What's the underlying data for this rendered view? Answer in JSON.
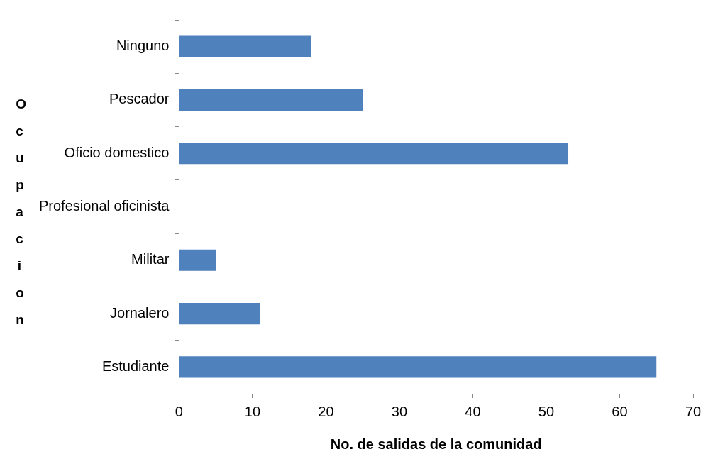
{
  "chart_data": {
    "type": "bar",
    "orientation": "horizontal",
    "xlabel": "No. de salidas de la comunidad",
    "ylabel": "Ocupacion",
    "categories": [
      "Ninguno",
      "Pescador",
      "Oficio domestico",
      "Profesional oficinista",
      "Militar",
      "Jornalero",
      "Estudiante"
    ],
    "values": [
      18,
      25,
      53,
      0,
      5,
      11,
      65
    ],
    "color": "#4f81bd",
    "xlim": [
      0,
      70
    ],
    "xticks": [
      0,
      10,
      20,
      30,
      40,
      50,
      60,
      70
    ],
    "grid": false,
    "legend": false
  }
}
